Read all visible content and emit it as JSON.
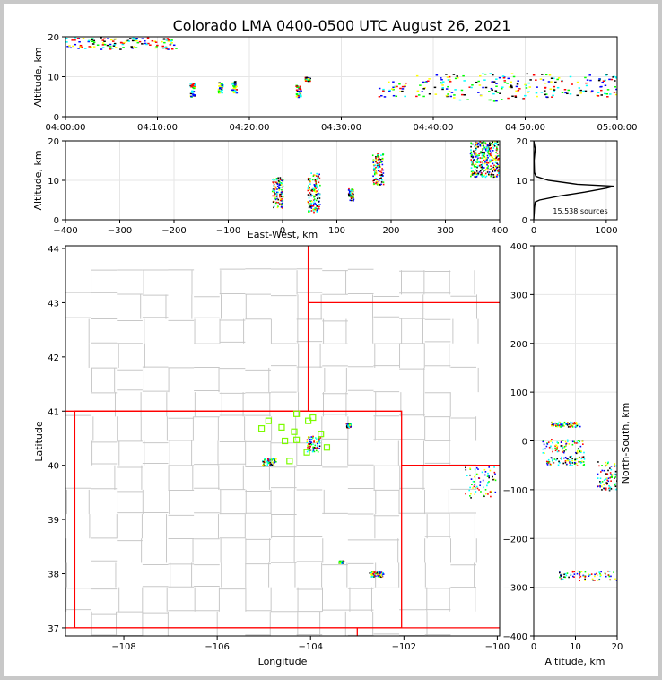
{
  "title": "Colorado LMA 0400-0500 UTC August 26, 2021",
  "colors": {
    "figure_border": "#c8c8c8",
    "state_lines": "#ff0000",
    "county_lines": "#c8c8c8",
    "stations": "#7cfc00",
    "sources_colormap": [
      "#0000ff",
      "#00ffff",
      "#00ff00",
      "#ffff00",
      "#ff0000",
      "#000000"
    ]
  },
  "chart_data": [
    {
      "id": "time_height",
      "type": "scatter",
      "xlabel": "",
      "ylabel": "Altitude, km",
      "x_ticks": [
        "04:00:00",
        "04:10:00",
        "04:20:00",
        "04:30:00",
        "04:40:00",
        "04:50:00",
        "05:00:00"
      ],
      "xlim": [
        "04:00:00",
        "05:00:00"
      ],
      "ylim": [
        0,
        20
      ],
      "y_ticks": [
        0,
        10,
        20
      ],
      "grid": true,
      "clusters": [
        {
          "t": [
            "04:00:00",
            "04:12:00"
          ],
          "alt": [
            17,
            20
          ]
        },
        {
          "t": [
            "04:13:30",
            "04:14:00"
          ],
          "alt": [
            5,
            8.5
          ]
        },
        {
          "t": [
            "04:16:30",
            "04:17:00"
          ],
          "alt": [
            6,
            9
          ]
        },
        {
          "t": [
            "04:18:00",
            "04:18:30"
          ],
          "alt": [
            6,
            9
          ]
        },
        {
          "t": [
            "04:25:00",
            "04:25:30"
          ],
          "alt": [
            5,
            8
          ]
        },
        {
          "t": [
            "04:26:00",
            "04:26:30"
          ],
          "alt": [
            9,
            10
          ]
        },
        {
          "t": [
            "04:34:00",
            "04:37:00"
          ],
          "alt": [
            5,
            9
          ]
        },
        {
          "t": [
            "04:38:00",
            "04:42:00"
          ],
          "alt": [
            5,
            11
          ]
        },
        {
          "t": [
            "04:42:00",
            "04:50:00"
          ],
          "alt": [
            4,
            11
          ]
        },
        {
          "t": [
            "04:50:00",
            "05:00:00"
          ],
          "alt": [
            5,
            11
          ]
        }
      ]
    },
    {
      "id": "ew_altitude",
      "type": "scatter",
      "xlabel": "East-West, km",
      "ylabel": "Altitude, km",
      "xlim": [
        -400,
        400
      ],
      "ylim": [
        0,
        20
      ],
      "x_ticks": [
        -400,
        -300,
        -200,
        -100,
        0,
        100,
        200,
        300,
        400
      ],
      "y_ticks": [
        0,
        10,
        20
      ],
      "grid": true,
      "clusters": [
        {
          "x": [
            -20,
            0
          ],
          "alt": [
            3,
            11
          ]
        },
        {
          "x": [
            45,
            68
          ],
          "alt": [
            2,
            12
          ]
        },
        {
          "x": [
            120,
            130
          ],
          "alt": [
            5,
            8
          ]
        },
        {
          "x": [
            165,
            185
          ],
          "alt": [
            9,
            17
          ]
        },
        {
          "x": [
            345,
            400
          ],
          "alt": [
            11,
            20
          ]
        }
      ]
    },
    {
      "id": "altitude_histogram",
      "type": "line",
      "xlim": [
        0,
        1150
      ],
      "ylim": [
        0,
        20
      ],
      "x_ticks": [
        0,
        1000
      ],
      "y_ticks": [
        0,
        10,
        20
      ],
      "grid": true,
      "annotation": "15,538 sources",
      "profile": [
        [
          0,
          0
        ],
        [
          10,
          3
        ],
        [
          20,
          4.5
        ],
        [
          80,
          5
        ],
        [
          350,
          6
        ],
        [
          700,
          7
        ],
        [
          1000,
          8
        ],
        [
          1100,
          8.5
        ],
        [
          600,
          9
        ],
        [
          200,
          10
        ],
        [
          30,
          11
        ],
        [
          10,
          12
        ],
        [
          5,
          15
        ],
        [
          20,
          18
        ],
        [
          5,
          19.5
        ],
        [
          0,
          20
        ]
      ]
    },
    {
      "id": "plan_view",
      "type": "scatter",
      "xlabel": "Longitude",
      "ylabel": "Latitude",
      "xlim": [
        -109.25,
        -99.95
      ],
      "ylim": [
        36.85,
        44.05
      ],
      "x_ticks": [
        -108,
        -106,
        -104,
        -102,
        -100
      ],
      "y_ticks": [
        37,
        38,
        39,
        40,
        41,
        42,
        43,
        44
      ],
      "stations": [
        [
          -104.9,
          40.82
        ],
        [
          -104.62,
          40.7
        ],
        [
          -104.3,
          40.95
        ],
        [
          -104.05,
          40.82
        ],
        [
          -103.95,
          40.88
        ],
        [
          -105.05,
          40.68
        ],
        [
          -104.35,
          40.62
        ],
        [
          -104.55,
          40.45
        ],
        [
          -104.3,
          40.47
        ],
        [
          -103.78,
          40.58
        ],
        [
          -103.65,
          40.33
        ],
        [
          -104.08,
          40.24
        ],
        [
          -104.45,
          40.08
        ]
      ],
      "clusters": [
        {
          "lon": [
            -105.05,
            -104.75
          ],
          "lat": [
            40.0,
            40.15
          ]
        },
        {
          "lon": [
            -104.1,
            -103.8
          ],
          "lat": [
            40.25,
            40.55
          ]
        },
        {
          "lon": [
            -103.25,
            -103.15
          ],
          "lat": [
            40.7,
            40.78
          ]
        },
        {
          "lon": [
            -103.4,
            -103.3
          ],
          "lat": [
            38.2,
            38.25
          ]
        },
        {
          "lon": [
            -102.75,
            -102.45
          ],
          "lat": [
            37.95,
            38.05
          ]
        },
        {
          "lon": [
            -100.75,
            -100.05
          ],
          "lat": [
            39.4,
            40.0
          ]
        }
      ]
    },
    {
      "id": "altitude_ns",
      "type": "scatter",
      "xlabel": "Altitude, km",
      "ylabel": "North-South, km",
      "xlim": [
        0,
        20
      ],
      "ylim": [
        -400,
        400
      ],
      "x_ticks": [
        0,
        10,
        20
      ],
      "y_ticks": [
        -400,
        -300,
        -200,
        -100,
        0,
        100,
        200,
        300,
        400
      ],
      "clusters": [
        {
          "alt": [
            4,
            11
          ],
          "ns": [
            30,
            40
          ]
        },
        {
          "alt": [
            2,
            12
          ],
          "ns": [
            -25,
            5
          ]
        },
        {
          "alt": [
            3,
            12
          ],
          "ns": [
            -50,
            -30
          ]
        },
        {
          "alt": [
            15,
            20
          ],
          "ns": [
            -100,
            -40
          ]
        },
        {
          "alt": [
            6,
            20
          ],
          "ns": [
            -285,
            -265
          ]
        }
      ]
    }
  ]
}
